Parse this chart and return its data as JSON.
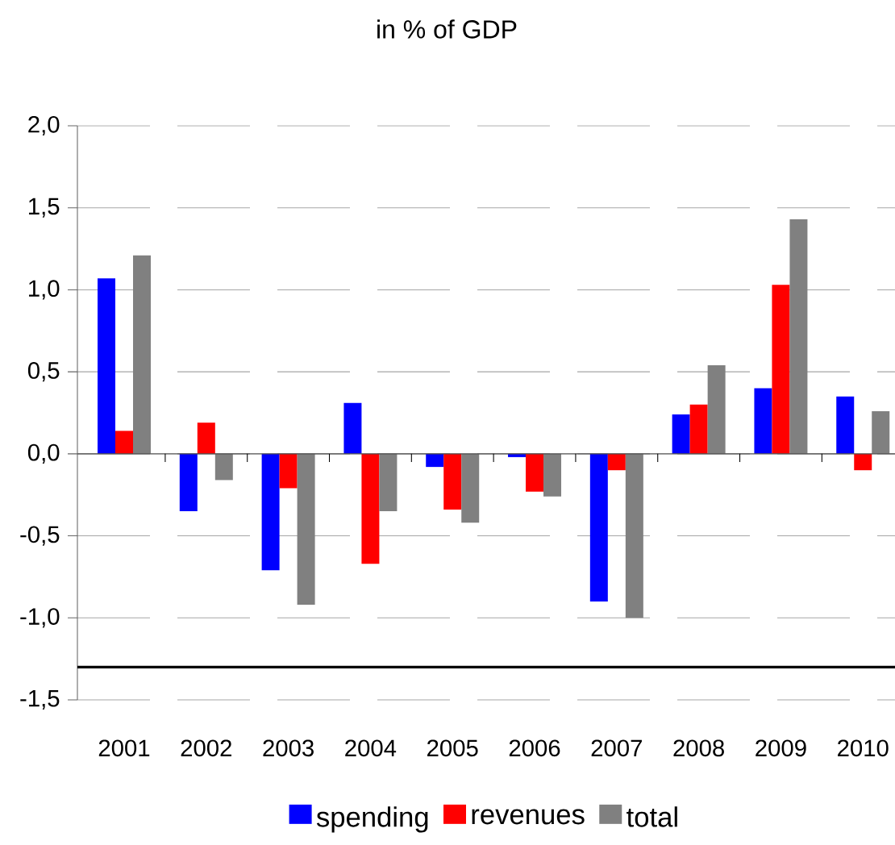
{
  "chart_data": {
    "type": "bar",
    "title": "in % of GDP",
    "categories": [
      "2001",
      "2002",
      "2003",
      "2004",
      "2005",
      "2006",
      "2007",
      "2008",
      "2009",
      "2010"
    ],
    "series": [
      {
        "name": "spending",
        "color": "#0000ff",
        "values": [
          1.07,
          -0.35,
          -0.71,
          0.31,
          -0.08,
          -0.02,
          -0.9,
          0.24,
          0.4,
          0.35
        ]
      },
      {
        "name": "revenues",
        "color": "#ff0000",
        "values": [
          0.14,
          0.19,
          -0.21,
          -0.67,
          -0.34,
          -0.23,
          -0.1,
          0.3,
          1.03,
          -0.1
        ]
      },
      {
        "name": "total",
        "color": "#808080",
        "values": [
          1.21,
          -0.16,
          -0.92,
          -0.35,
          -0.42,
          -0.26,
          -1.0,
          0.54,
          1.43,
          0.26
        ]
      }
    ],
    "ylim": [
      -1.5,
      2.0
    ],
    "yticks": [
      {
        "value": -1.5,
        "label": "-1,5"
      },
      {
        "value": -1.0,
        "label": "-1,0"
      },
      {
        "value": -0.5,
        "label": "-0,5"
      },
      {
        "value": 0,
        "label": "0,0"
      },
      {
        "value": 0.5,
        "label": "0,5"
      },
      {
        "value": 1.0,
        "label": "1,0"
      },
      {
        "value": 1.5,
        "label": "1,5"
      },
      {
        "value": 2.0,
        "label": "2,0"
      }
    ],
    "grid": "y",
    "legend": "bottom",
    "ref_lines": [
      {
        "axis": "y",
        "value": -1.3,
        "color": "#000000"
      }
    ]
  }
}
